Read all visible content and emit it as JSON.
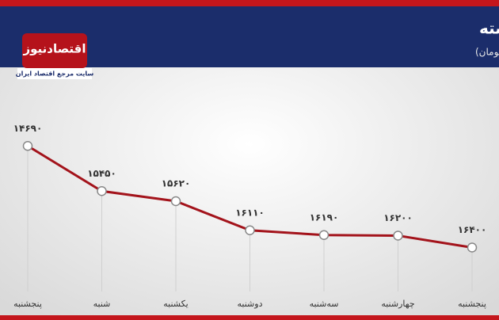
{
  "logo": {
    "name": "اقتصادنیوز",
    "tagline": "سایت مرجع اقتصاد ایران"
  },
  "chart_data": {
    "type": "line",
    "title": "| روند بهای سکه در هفته گذشته",
    "subtitle": "(واحد: هزار تومان)",
    "categories": [
      "پنجشنبه",
      "شنبه",
      "یکشنبه",
      "دوشنبه",
      "سه‌شنبه",
      "چهارشنبه",
      "پنجشنبه"
    ],
    "values": [
      14690,
      15450,
      15620,
      16110,
      16190,
      16200,
      16400
    ],
    "value_labels": [
      "۱۴۶۹۰",
      "۱۵۴۵۰",
      "۱۵۶۲۰",
      "۱۶۱۱۰",
      "۱۶۱۹۰",
      "۱۶۲۰۰",
      "۱۶۴۰۰"
    ],
    "color": "#a3131b",
    "ylim": [
      14500,
      16500
    ],
    "y_inverted": true
  }
}
